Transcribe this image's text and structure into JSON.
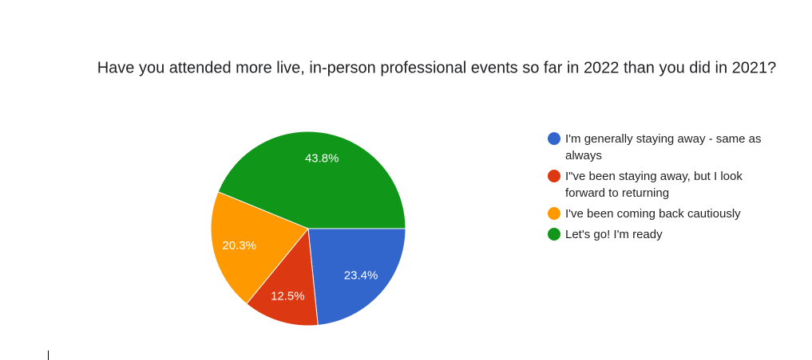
{
  "chart_data": {
    "type": "pie",
    "title": "Have you attended more live, in-person professional events so far in 2022 than you did in 2021?",
    "categories": [
      "I'm generally staying away - same as always",
      "I\"ve been staying away, but I look forward to returning",
      "I've been coming back cautiously",
      "Let's go! I'm ready"
    ],
    "values": [
      23.4,
      12.5,
      20.3,
      43.8
    ],
    "value_labels": [
      "23.4%",
      "12.5%",
      "20.3%",
      "43.8%"
    ],
    "colors": [
      "#3366cc",
      "#dc3912",
      "#ff9900",
      "#109618"
    ],
    "legend": "right"
  }
}
